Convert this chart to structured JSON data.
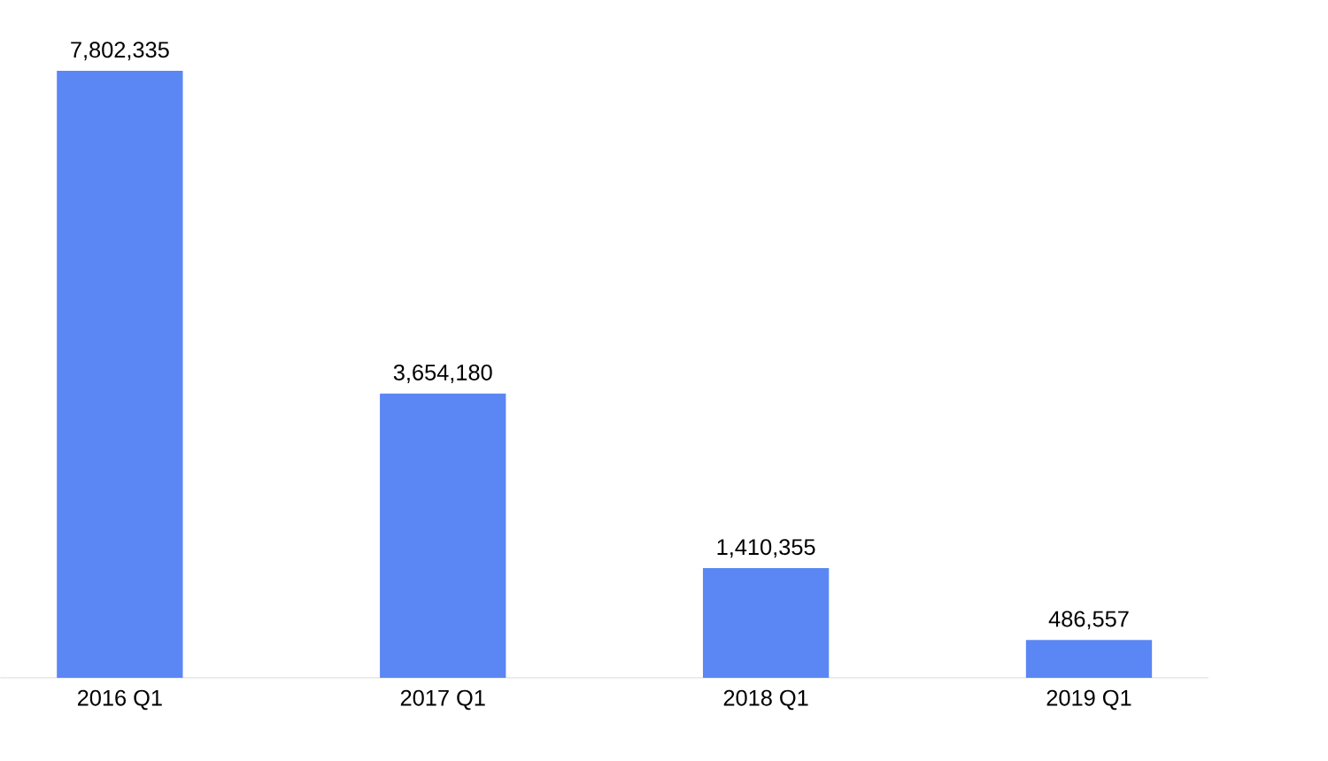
{
  "chart_data": {
    "type": "bar",
    "categories": [
      "2016 Q1",
      "2017 Q1",
      "2018 Q1",
      "2019 Q1"
    ],
    "values": [
      7802335,
      3654180,
      1410355,
      486557
    ],
    "value_labels": [
      "7,802,335",
      "3,654,180",
      "1,410,355",
      "486,557"
    ],
    "color": "#5b87f5"
  }
}
